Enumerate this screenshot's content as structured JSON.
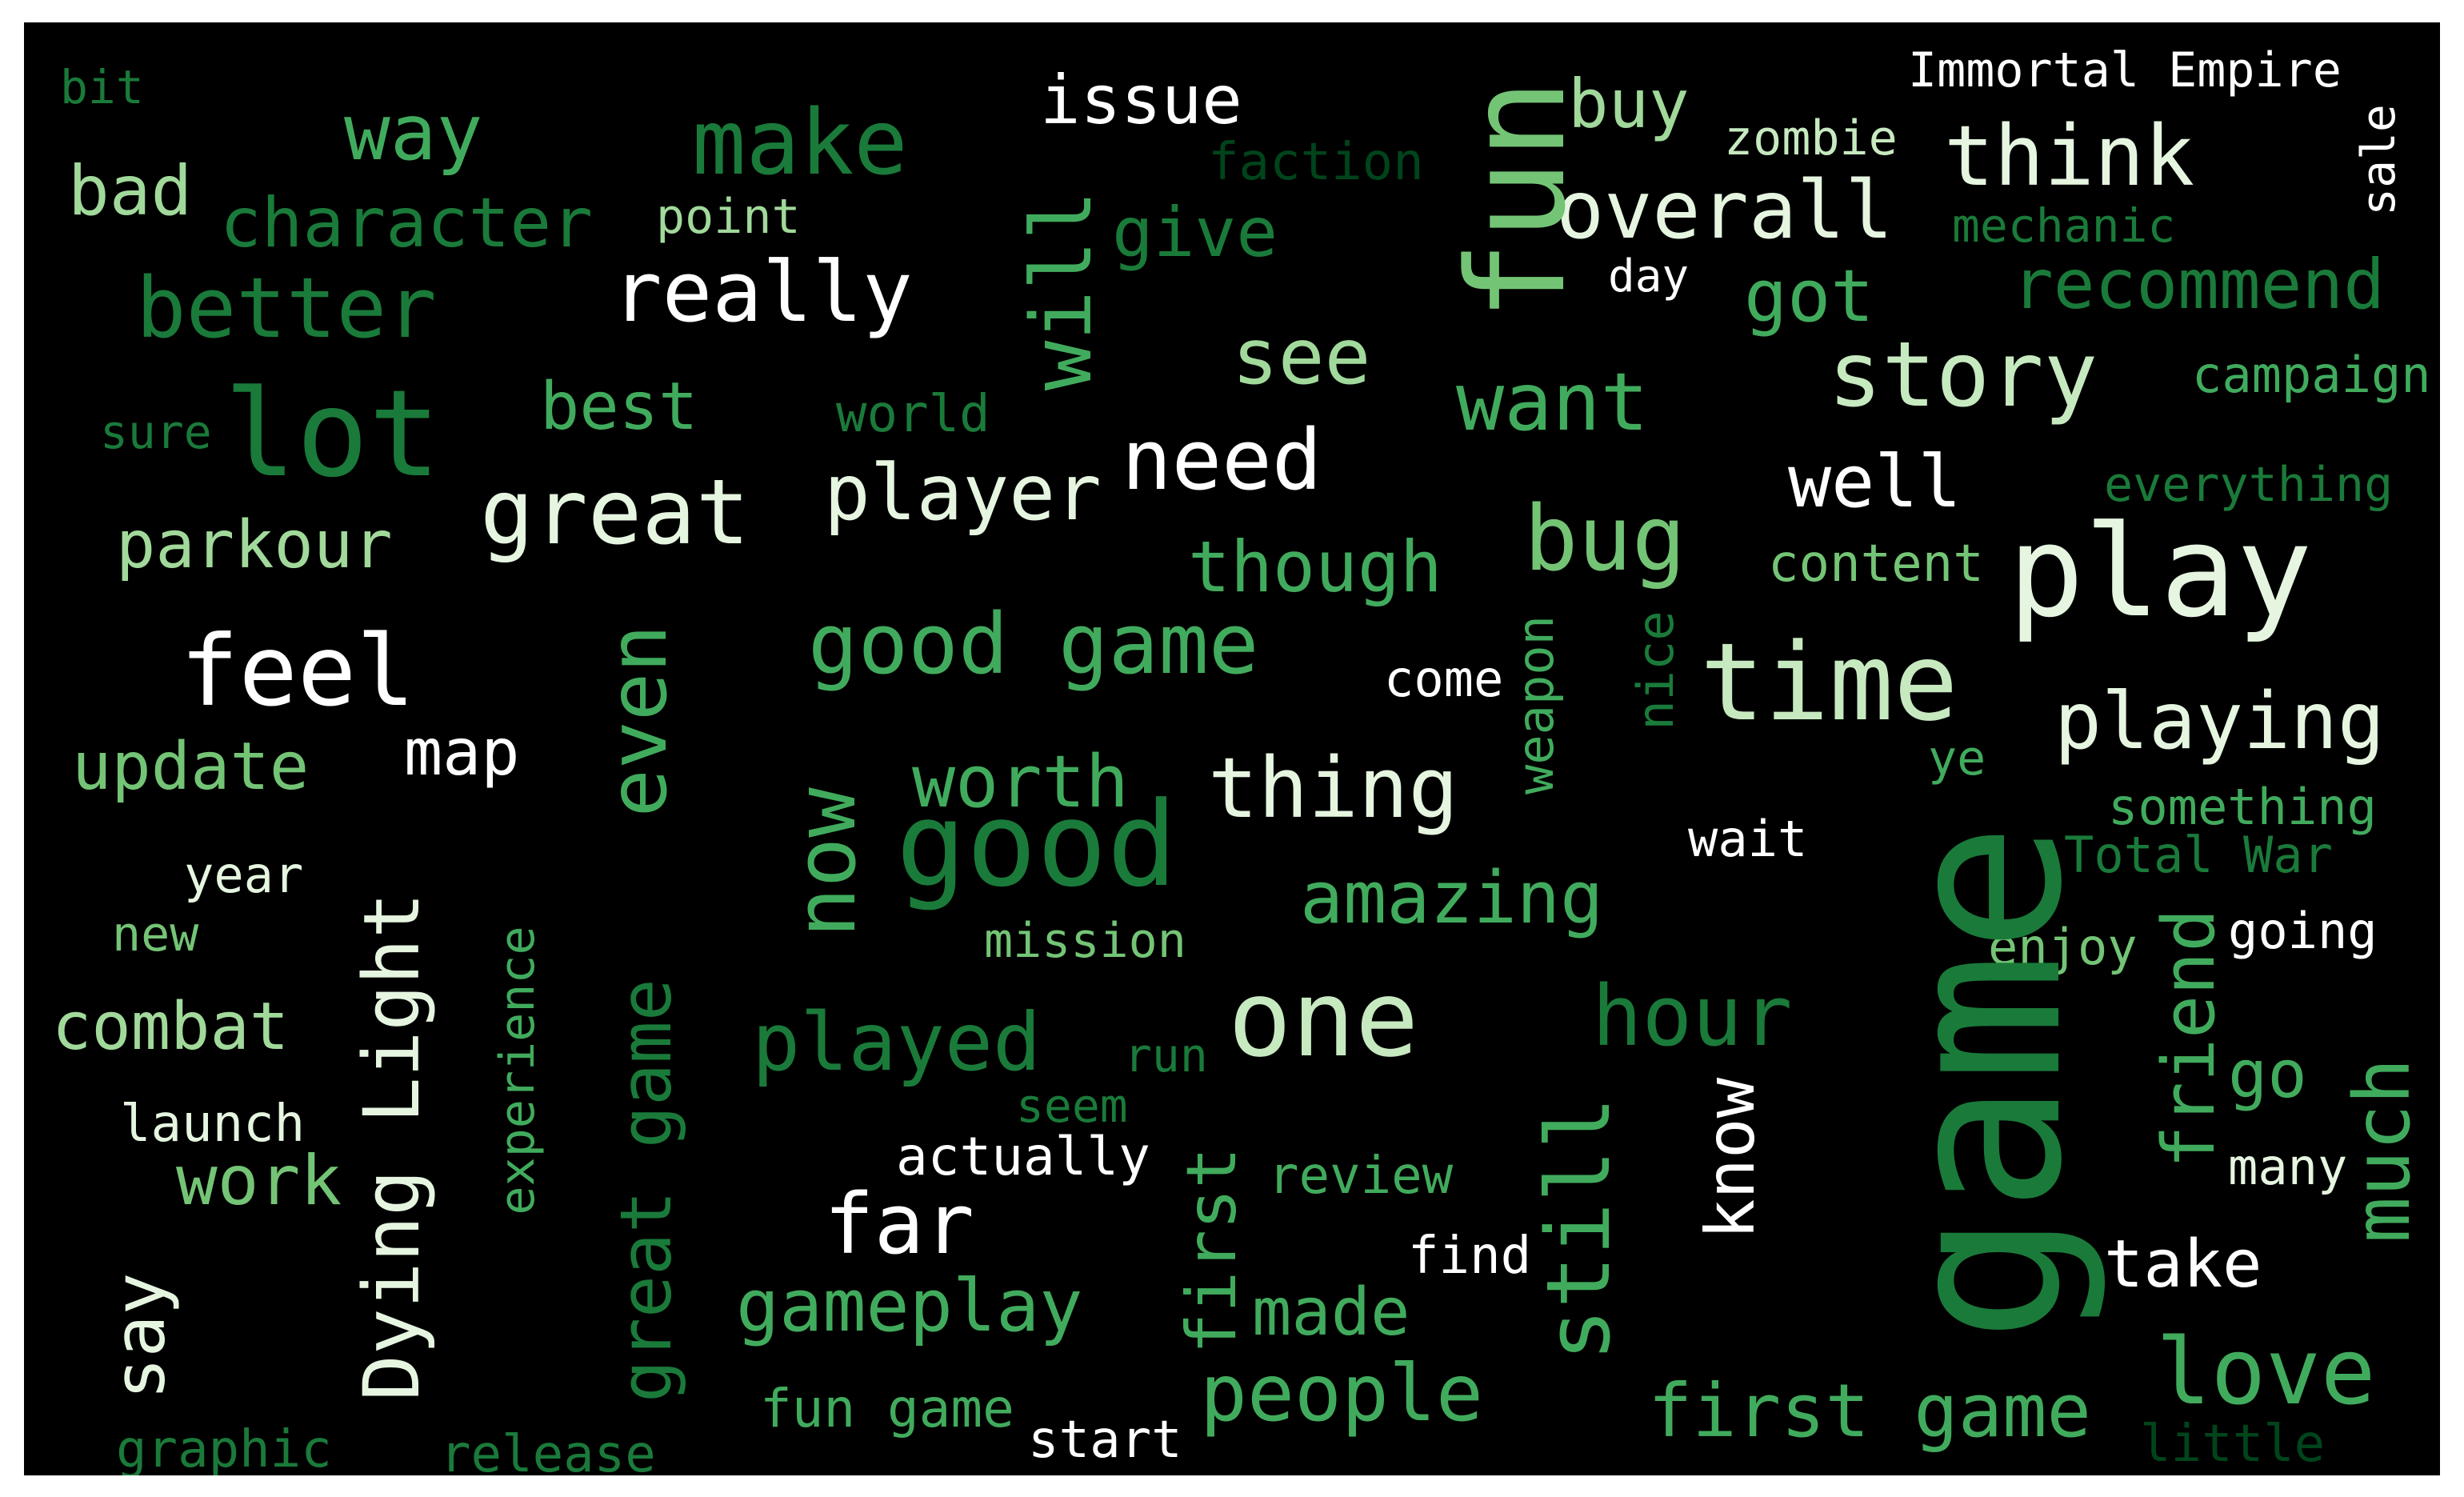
{
  "background": "#000000",
  "palette": [
    "#00441b",
    "#1a7a3a",
    "#41ab5d",
    "#74c476",
    "#a1d99b",
    "#c7e9c0",
    "#e5f5e0",
    "#ffffff"
  ],
  "words": [
    {
      "text": "game",
      "color": "#1a7a3a"
    },
    {
      "text": "play",
      "color": "#e5f5e0"
    },
    {
      "text": "fun",
      "color": "#74c476"
    },
    {
      "text": "time",
      "color": "#c7e9c0"
    },
    {
      "text": "good",
      "color": "#1a7a3a"
    },
    {
      "text": "lot",
      "color": "#1a7a3a"
    },
    {
      "text": "one",
      "color": "#c7e9c0"
    },
    {
      "text": "story",
      "color": "#c7e9c0"
    },
    {
      "text": "great",
      "color": "#e5f5e0"
    },
    {
      "text": "feel",
      "color": "#ffffff"
    },
    {
      "text": "good game",
      "color": "#41ab5d"
    },
    {
      "text": "make",
      "color": "#1a7a3a"
    },
    {
      "text": "really",
      "color": "#ffffff"
    },
    {
      "text": "need",
      "color": "#ffffff"
    },
    {
      "text": "thing",
      "color": "#e5f5e0"
    },
    {
      "text": "bug",
      "color": "#74c476"
    },
    {
      "text": "playing",
      "color": "#e5f5e0"
    },
    {
      "text": "think",
      "color": "#e5f5e0"
    },
    {
      "text": "overall",
      "color": "#e5f5e0"
    },
    {
      "text": "want",
      "color": "#41ab5d"
    },
    {
      "text": "player",
      "color": "#e5f5e0"
    },
    {
      "text": "better",
      "color": "#1a7a3a"
    },
    {
      "text": "way",
      "color": "#41ab5d"
    },
    {
      "text": "far",
      "color": "#ffffff"
    },
    {
      "text": "people",
      "color": "#41ab5d"
    },
    {
      "text": "love",
      "color": "#41ab5d"
    },
    {
      "text": "first game",
      "color": "#41ab5d"
    },
    {
      "text": "hour",
      "color": "#1a7a3a"
    },
    {
      "text": "played",
      "color": "#1a7a3a"
    },
    {
      "text": "gameplay",
      "color": "#41ab5d"
    },
    {
      "text": "amazing",
      "color": "#41ab5d"
    },
    {
      "text": "worth",
      "color": "#41ab5d"
    },
    {
      "text": "see",
      "color": "#a1d99b"
    },
    {
      "text": "though",
      "color": "#41ab5d"
    },
    {
      "text": "well",
      "color": "#ffffff"
    },
    {
      "text": "got",
      "color": "#41ab5d"
    },
    {
      "text": "recommend",
      "color": "#1a7a3a"
    },
    {
      "text": "give",
      "color": "#1a7a3a"
    },
    {
      "text": "issue",
      "color": "#ffffff"
    },
    {
      "text": "buy",
      "color": "#a1d99b"
    },
    {
      "text": "character",
      "color": "#1a7a3a"
    },
    {
      "text": "bad",
      "color": "#a1d99b"
    },
    {
      "text": "parkour",
      "color": "#a1d99b"
    },
    {
      "text": "update",
      "color": "#74c476"
    },
    {
      "text": "map",
      "color": "#ffffff"
    },
    {
      "text": "combat",
      "color": "#a1d99b"
    },
    {
      "text": "work",
      "color": "#74c476"
    },
    {
      "text": "best",
      "color": "#41ab5d"
    },
    {
      "text": "take",
      "color": "#ffffff"
    },
    {
      "text": "go",
      "color": "#41ab5d"
    },
    {
      "text": "made",
      "color": "#41ab5d"
    },
    {
      "text": "Immortal Empire",
      "color": "#ffffff"
    },
    {
      "text": "zombie",
      "color": "#c7e9c0"
    },
    {
      "text": "faction",
      "color": "#00441b"
    },
    {
      "text": "mechanic",
      "color": "#1a7a3a"
    },
    {
      "text": "day",
      "color": "#ffffff"
    },
    {
      "text": "point",
      "color": "#a1d99b"
    },
    {
      "text": "bit",
      "color": "#1a7a3a"
    },
    {
      "text": "campaign",
      "color": "#41ab5d"
    },
    {
      "text": "everything",
      "color": "#1a7a3a"
    },
    {
      "text": "content",
      "color": "#74c476"
    },
    {
      "text": "world",
      "color": "#1a7a3a"
    },
    {
      "text": "sure",
      "color": "#1a7a3a"
    },
    {
      "text": "come",
      "color": "#ffffff"
    },
    {
      "text": "ye",
      "color": "#41ab5d"
    },
    {
      "text": "something",
      "color": "#41ab5d"
    },
    {
      "text": "Total War",
      "color": "#1a7a3a"
    },
    {
      "text": "wait",
      "color": "#ffffff"
    },
    {
      "text": "enjoy",
      "color": "#74c476"
    },
    {
      "text": "going",
      "color": "#ffffff"
    },
    {
      "text": "mission",
      "color": "#74c476"
    },
    {
      "text": "year",
      "color": "#e5f5e0"
    },
    {
      "text": "new",
      "color": "#74c476"
    },
    {
      "text": "run",
      "color": "#1a7a3a"
    },
    {
      "text": "seem",
      "color": "#1a7a3a"
    },
    {
      "text": "actually",
      "color": "#ffffff"
    },
    {
      "text": "review",
      "color": "#41ab5d"
    },
    {
      "text": "launch",
      "color": "#e5f5e0"
    },
    {
      "text": "many",
      "color": "#e5f5e0"
    },
    {
      "text": "find",
      "color": "#ffffff"
    },
    {
      "text": "fun game",
      "color": "#41ab5d"
    },
    {
      "text": "start",
      "color": "#ffffff"
    },
    {
      "text": "graphic",
      "color": "#1a7a3a"
    },
    {
      "text": "release",
      "color": "#1a7a3a"
    },
    {
      "text": "little",
      "color": "#00441b"
    },
    {
      "text": "will",
      "color": "#41ab5d"
    },
    {
      "text": "even",
      "color": "#41ab5d"
    },
    {
      "text": "now",
      "color": "#41ab5d"
    },
    {
      "text": "Dying Light",
      "color": "#e5f5e0"
    },
    {
      "text": "great game",
      "color": "#1a7a3a"
    },
    {
      "text": "still",
      "color": "#41ab5d"
    },
    {
      "text": "first",
      "color": "#41ab5d"
    },
    {
      "text": "know",
      "color": "#ffffff"
    },
    {
      "text": "friend",
      "color": "#41ab5d"
    },
    {
      "text": "much",
      "color": "#41ab5d"
    },
    {
      "text": "experience",
      "color": "#41ab5d"
    },
    {
      "text": "say",
      "color": "#e5f5e0"
    },
    {
      "text": "weapon",
      "color": "#41ab5d"
    },
    {
      "text": "nice",
      "color": "#1a7a3a"
    },
    {
      "text": "sale",
      "color": "#ffffff"
    }
  ]
}
